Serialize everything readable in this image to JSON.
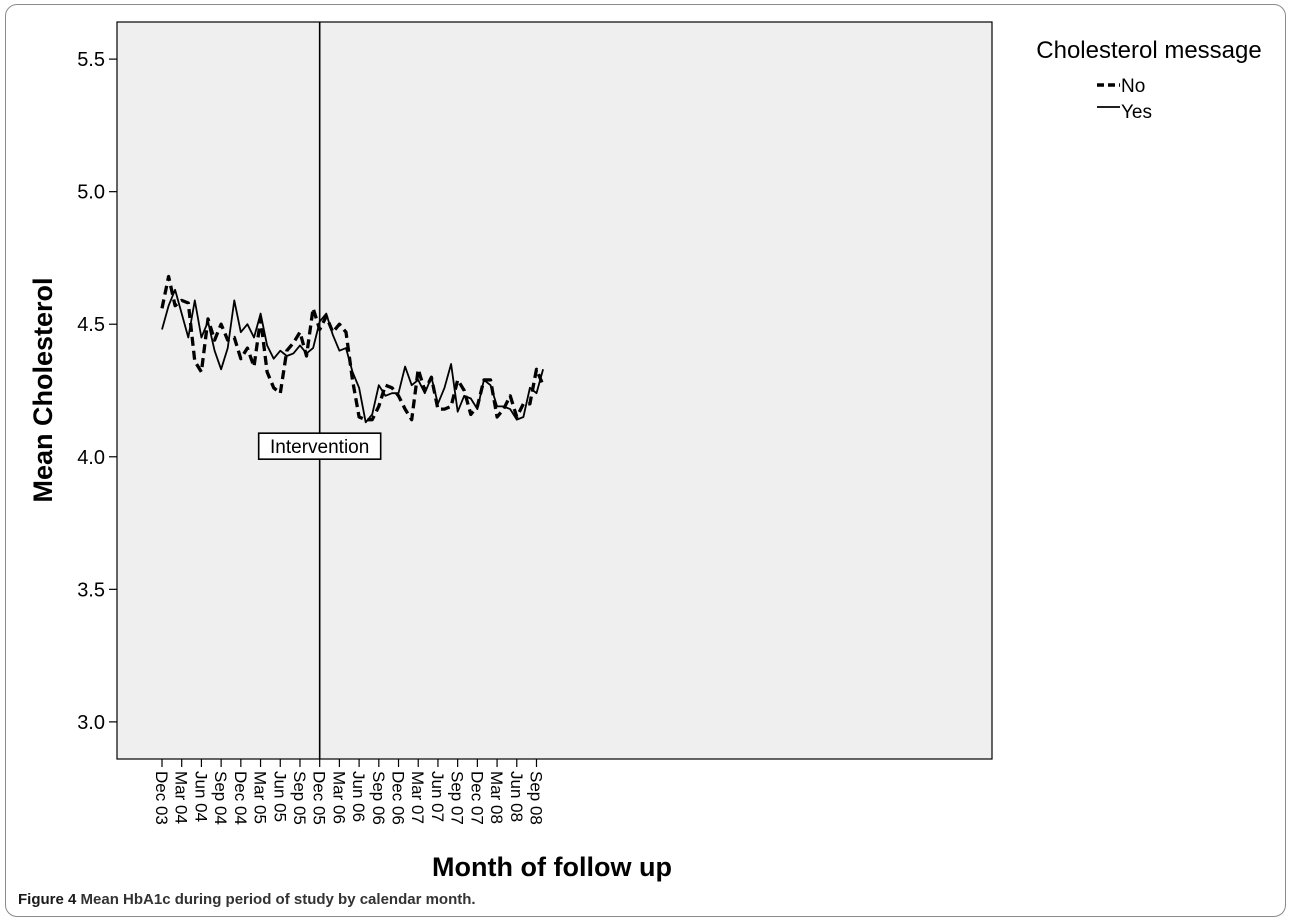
{
  "chart_data": {
    "type": "line",
    "xlabel": "Month of follow up",
    "ylabel": "Mean Cholesterol",
    "ylim": [
      2.86,
      5.64
    ],
    "yticks": [
      "3.0",
      "3.5",
      "4.0",
      "4.5",
      "5.0",
      "5.5"
    ],
    "x_tick_labels": [
      "Dec 03",
      "Mar 04",
      "Jun 04",
      "Sep 04",
      "Dec 04",
      "Mar 05",
      "Jun 05",
      "Sep 05",
      "Dec 05",
      "Mar 06",
      "Jun 06",
      "Sep 06",
      "Dec 06",
      "Mar 07",
      "Jun 07",
      "Sep 07",
      "Dec 07",
      "Mar 08",
      "Jun 08",
      "Sep 08"
    ],
    "x": [
      "Dec 03",
      "Jan 04",
      "Feb 04",
      "Mar 04",
      "Apr 04",
      "May 04",
      "Jun 04",
      "Jul 04",
      "Aug 04",
      "Sep 04",
      "Oct 04",
      "Nov 04",
      "Dec 04",
      "Jan 05",
      "Feb 05",
      "Mar 05",
      "Apr 05",
      "May 05",
      "Jun 05",
      "Jul 05",
      "Aug 05",
      "Sep 05",
      "Oct 05",
      "Nov 05",
      "Dec 05",
      "Jan 06",
      "Feb 06",
      "Mar 06",
      "Apr 06",
      "May 06",
      "Jun 06",
      "Jul 06",
      "Aug 06",
      "Sep 06",
      "Oct 06",
      "Nov 06",
      "Dec 06",
      "Jan 07",
      "Feb 07",
      "Mar 07",
      "Apr 07",
      "May 07",
      "Jun 07",
      "Jul 07",
      "Aug 07",
      "Sep 07",
      "Oct 07",
      "Nov 07",
      "Dec 07",
      "Jan 08",
      "Feb 08",
      "Mar 08",
      "Apr 08",
      "May 08",
      "Jun 08",
      "Jul 08",
      "Aug 08",
      "Sep 08",
      "Oct 08"
    ],
    "series": [
      {
        "name": "No",
        "style": "dashed",
        "values": [
          4.56,
          4.68,
          4.57,
          4.59,
          4.58,
          4.36,
          4.32,
          4.52,
          4.44,
          4.5,
          4.44,
          4.45,
          4.37,
          4.41,
          4.34,
          4.52,
          4.32,
          4.26,
          4.24,
          4.4,
          4.43,
          4.47,
          4.38,
          4.56,
          4.48,
          4.53,
          4.47,
          4.5,
          4.47,
          4.29,
          4.15,
          4.14,
          4.14,
          4.19,
          4.27,
          4.26,
          4.23,
          4.18,
          4.14,
          4.33,
          4.25,
          4.3,
          4.18,
          4.18,
          4.19,
          4.29,
          4.25,
          4.16,
          4.19,
          4.29,
          4.29,
          4.15,
          4.18,
          4.23,
          4.15,
          4.2,
          4.2,
          4.33,
          4.27
        ]
      },
      {
        "name": "Yes",
        "style": "solid",
        "values": [
          4.48,
          4.57,
          4.63,
          4.54,
          4.45,
          4.59,
          4.45,
          4.51,
          4.4,
          4.33,
          4.41,
          4.59,
          4.47,
          4.5,
          4.45,
          4.54,
          4.42,
          4.37,
          4.4,
          4.38,
          4.39,
          4.42,
          4.39,
          4.41,
          4.51,
          4.54,
          4.46,
          4.4,
          4.41,
          4.32,
          4.26,
          4.13,
          4.16,
          4.27,
          4.23,
          4.24,
          4.24,
          4.34,
          4.27,
          4.29,
          4.24,
          4.3,
          4.2,
          4.26,
          4.35,
          4.17,
          4.23,
          4.22,
          4.18,
          4.29,
          4.27,
          4.19,
          4.19,
          4.18,
          4.14,
          4.15,
          4.26,
          4.24,
          4.33
        ]
      }
    ],
    "annotations": [
      {
        "text": "Intervention",
        "x": "Dec 05",
        "y": 4.04
      }
    ],
    "reference_line": {
      "x": "Dec 05"
    },
    "legend": {
      "title": "Cholesterol message",
      "placement": "top-right, outside plot"
    },
    "grid": false
  },
  "caption": {
    "label": "Figure 4",
    "text": "Mean HbA1c during period of study by calendar month."
  },
  "colors": {
    "plot_background": "#efefef",
    "line": "#000000"
  }
}
